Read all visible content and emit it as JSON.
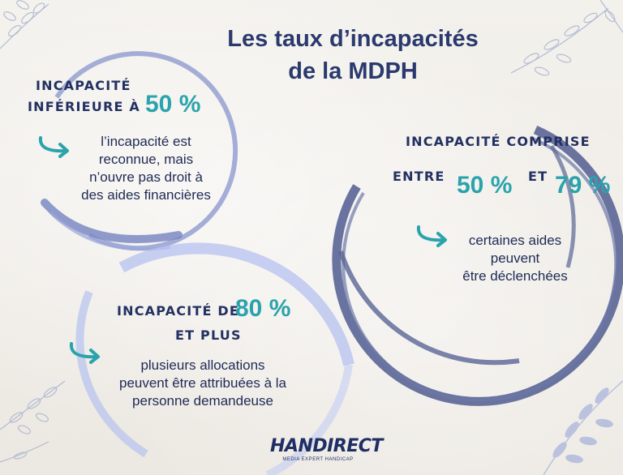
{
  "title": {
    "line1": "Les taux d’incapacités",
    "line2": "de la MDPH"
  },
  "block1": {
    "head1": "Incapacité",
    "head2": "inférieure à",
    "pct": "50 %",
    "text": [
      "l’incapacité est",
      "reconnue, mais",
      "n’ouvre pas droit à",
      "des aides financières"
    ]
  },
  "block2": {
    "head1": "Incapacité comprise",
    "head2a": "entre",
    "pct1": "50 %",
    "head2b": "et",
    "pct2": "79 %",
    "text": [
      "certaines aides",
      "peuvent",
      "être déclenchées"
    ]
  },
  "block3": {
    "head1": "Incapacité de",
    "pct": "80 %",
    "head2": "et plus",
    "text": [
      "plusieurs allocations",
      "peuvent être attribuées à la",
      "personne demandeuse"
    ]
  },
  "logo": {
    "name": "HANDIRECT",
    "tagline": "MEDIA EXPERT HANDICAP"
  },
  "colors": {
    "navy": "#233162",
    "teal": "#2aa3ad",
    "ring_light": "#aab8ec",
    "ring_dark": "#5a6596"
  }
}
